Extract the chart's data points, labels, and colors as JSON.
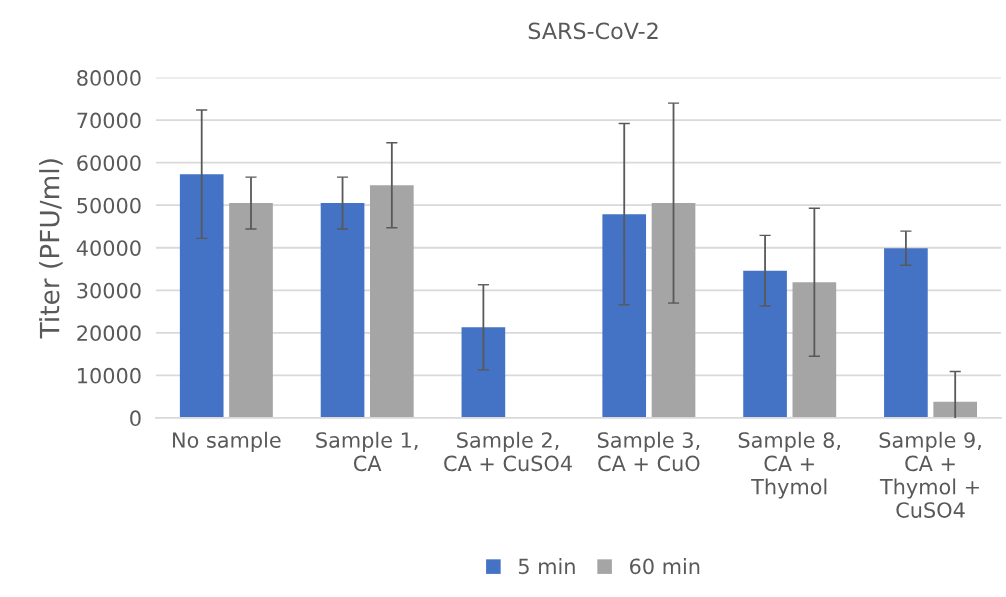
{
  "chart_data": {
    "type": "bar",
    "title": "SARS-CoV-2",
    "ylabel": "Titer (PFU/ml)",
    "categories": [
      "No sample",
      "Sample 1,\nCA",
      "Sample 2,\nCA + CuSO4",
      "Sample 3,\nCA + CuO",
      "Sample 8,\nCA +\nThymol",
      "Sample 9,\nCA +\nThymol +\nCuSO4"
    ],
    "series": [
      {
        "name": "5 min",
        "color": "#4472c4",
        "values": [
          57300,
          50500,
          21300,
          47900,
          34600,
          39900
        ],
        "errors": [
          15100,
          6100,
          10000,
          21300,
          8300,
          4000
        ]
      },
      {
        "name": "60 min",
        "color": "#a5a5a5",
        "values": [
          50500,
          54700,
          null,
          50500,
          31900,
          3800
        ],
        "errors": [
          6100,
          10000,
          null,
          23500,
          17400,
          7100
        ]
      }
    ],
    "ylim": [
      0,
      80000
    ],
    "yticks": [
      0,
      10000,
      20000,
      30000,
      40000,
      50000,
      60000,
      70000,
      80000
    ],
    "grid": "y",
    "legend": "bottom"
  }
}
